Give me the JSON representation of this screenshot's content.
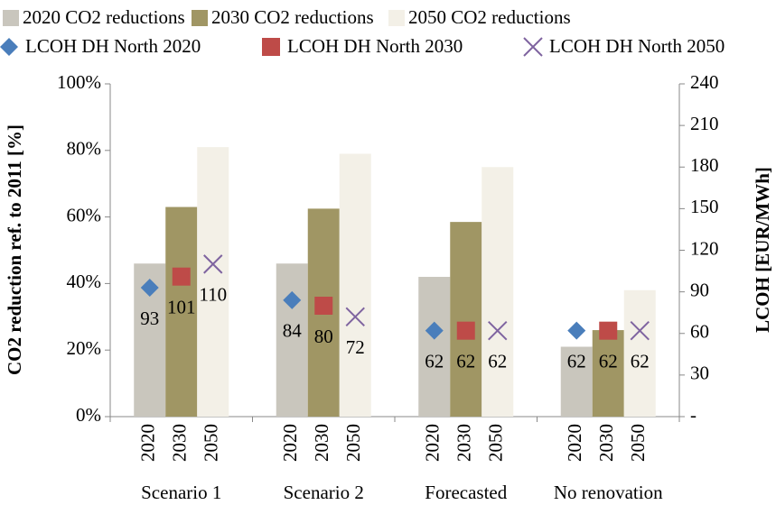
{
  "chart_data": {
    "type": "bar",
    "ylabel": "CO2 reduction ref. to 2011 [%]",
    "y2label": "LCOH [EUR/MWh]",
    "categories": [
      "Scenario 1",
      "Scenario 2",
      "Forecasted",
      "No renovation"
    ],
    "subcategories": [
      "2020",
      "2030",
      "2050"
    ],
    "ylim": [
      0,
      100
    ],
    "yticks": [
      {
        "value": 0,
        "label": "0%"
      },
      {
        "value": 20,
        "label": "20%"
      },
      {
        "value": 40,
        "label": "40%"
      },
      {
        "value": 60,
        "label": "60%"
      },
      {
        "value": 80,
        "label": "80%"
      },
      {
        "value": 100,
        "label": "100%"
      }
    ],
    "y2lim": [
      0,
      240
    ],
    "y2ticks": [
      {
        "value": 0,
        "label": "-"
      },
      30,
      60,
      90,
      120,
      150,
      180,
      210,
      240
    ],
    "series": [
      {
        "name": "2020 CO2 reductions",
        "type": "bar",
        "color": "#c9c6bd",
        "values": [
          46,
          46,
          42,
          21
        ]
      },
      {
        "name": "2030 CO2 reductions",
        "type": "bar",
        "color": "#a09664",
        "values": [
          63,
          62.5,
          58.5,
          26
        ]
      },
      {
        "name": "2050 CO2 reductions",
        "type": "bar",
        "color": "#f3f0e7",
        "values": [
          81,
          79,
          75,
          38
        ]
      },
      {
        "name": "LCOH DH North 2020",
        "type": "scatter",
        "marker": "diamond",
        "color": "#4a7ebb",
        "axis": "y2",
        "values": [
          93,
          84,
          62,
          62
        ]
      },
      {
        "name": "LCOH DH North 2030",
        "type": "scatter",
        "marker": "square",
        "color": "#be4b48",
        "axis": "y2",
        "values": [
          101,
          80,
          62,
          62
        ]
      },
      {
        "name": "LCOH DH North 2050",
        "type": "scatter",
        "marker": "x",
        "color": "#7f64a0",
        "axis": "y2",
        "values": [
          110,
          72,
          62,
          62
        ]
      }
    ]
  }
}
